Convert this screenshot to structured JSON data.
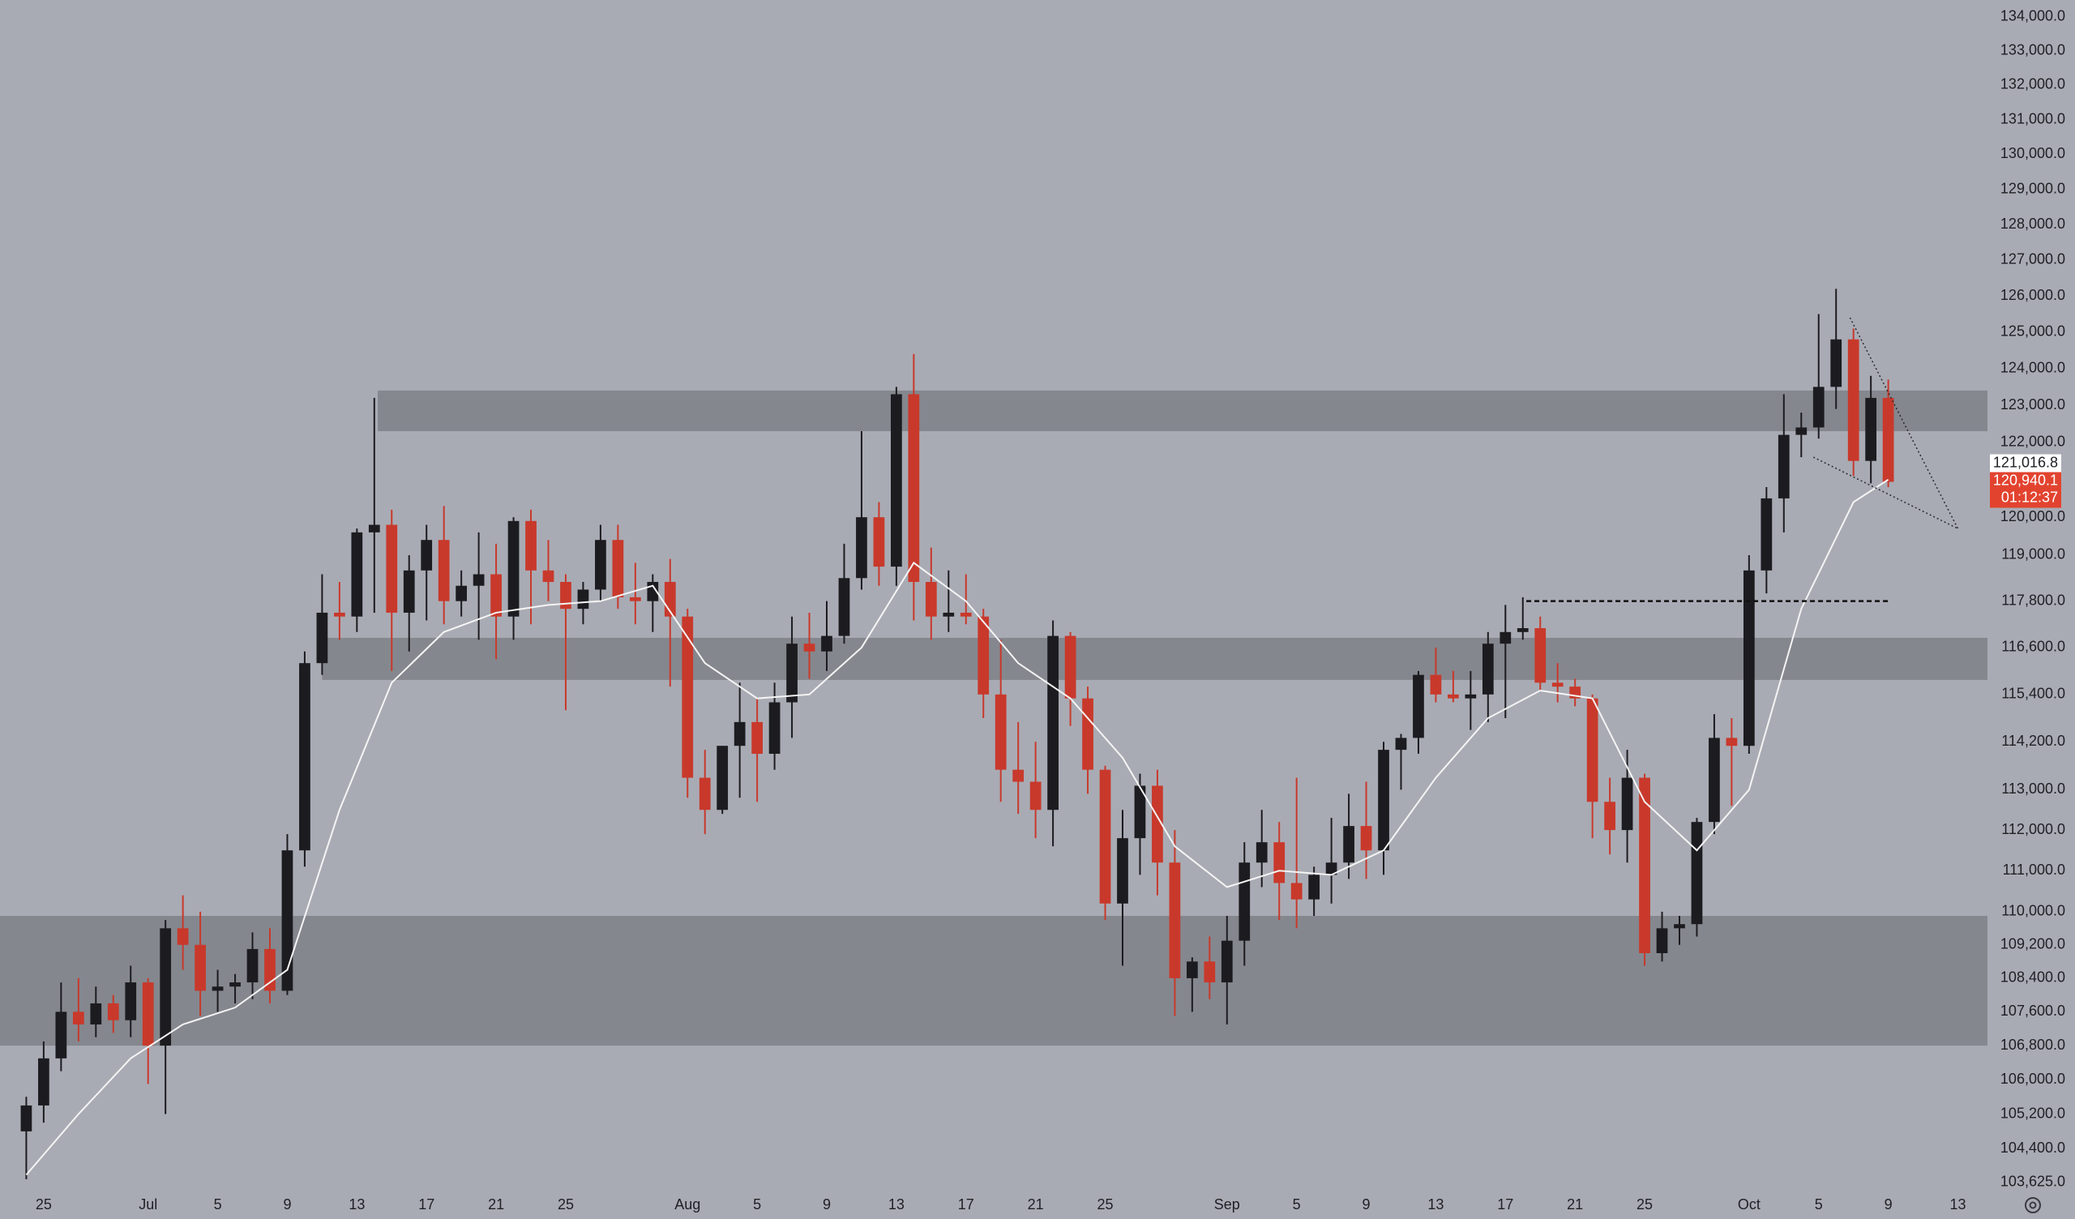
{
  "chart_data": {
    "type": "candlestick",
    "log_scale": true,
    "colors": {
      "up": "#1c1c20",
      "down": "#c8392b",
      "zone": "#85878e",
      "ma": "#f4f4f4"
    },
    "x": [
      2,
      3,
      4,
      5,
      6,
      7,
      8,
      9,
      10,
      11,
      12,
      13,
      14,
      15,
      16,
      17,
      18,
      19,
      20,
      21,
      22,
      23,
      24,
      25,
      26,
      27,
      28,
      29,
      30,
      31,
      32,
      33,
      34,
      35,
      36,
      37,
      38,
      39,
      40,
      41,
      42,
      43,
      44,
      45,
      46,
      47,
      48,
      49,
      50,
      51,
      52,
      53,
      54,
      55,
      56,
      57,
      58,
      59,
      60,
      61,
      62,
      63,
      64,
      65,
      66,
      67,
      68,
      69,
      70,
      71,
      72,
      73,
      74,
      75,
      76,
      77,
      78,
      79,
      80,
      81,
      82,
      83,
      84,
      85,
      86,
      87,
      88,
      89,
      90,
      91,
      92,
      93,
      94,
      95,
      96,
      97,
      98,
      99,
      100,
      101,
      102,
      103,
      104,
      105,
      106,
      107,
      108,
      109
    ],
    "ohlc": [
      [
        104800,
        105600,
        103700,
        105400
      ],
      [
        105400,
        106900,
        105000,
        106500
      ],
      [
        106500,
        108300,
        106200,
        107600
      ],
      [
        107600,
        108400,
        106900,
        107300
      ],
      [
        107300,
        108200,
        107000,
        107800
      ],
      [
        107800,
        108000,
        107100,
        107400
      ],
      [
        107400,
        108700,
        107000,
        108300
      ],
      [
        108300,
        108400,
        105900,
        106800
      ],
      [
        106800,
        109800,
        105200,
        109600
      ],
      [
        109600,
        110400,
        108600,
        109200
      ],
      [
        109200,
        110000,
        107500,
        108100
      ],
      [
        108100,
        108600,
        107600,
        108200
      ],
      [
        108200,
        108500,
        107800,
        108300
      ],
      [
        108300,
        109500,
        107900,
        109100
      ],
      [
        109100,
        109600,
        107800,
        108100
      ],
      [
        108100,
        111900,
        108000,
        111500
      ],
      [
        111500,
        116500,
        111100,
        116200
      ],
      [
        116200,
        118500,
        115900,
        117500
      ],
      [
        117500,
        118300,
        116800,
        117400
      ],
      [
        117400,
        119700,
        117000,
        119600
      ],
      [
        119600,
        123200,
        117500,
        119800
      ],
      [
        119800,
        120200,
        116000,
        117500
      ],
      [
        117500,
        119000,
        116500,
        118600
      ],
      [
        118600,
        119800,
        117300,
        119400
      ],
      [
        119400,
        120300,
        117200,
        117800
      ],
      [
        117800,
        118600,
        117400,
        118200
      ],
      [
        118200,
        119600,
        116800,
        118500
      ],
      [
        118500,
        119300,
        116300,
        117400
      ],
      [
        117400,
        120000,
        116800,
        119900
      ],
      [
        119900,
        120200,
        117200,
        118600
      ],
      [
        118600,
        119400,
        117800,
        118300
      ],
      [
        118300,
        118500,
        115000,
        117600
      ],
      [
        117600,
        118300,
        117200,
        118100
      ],
      [
        118100,
        119800,
        117800,
        119400
      ],
      [
        119400,
        119800,
        117600,
        117900
      ],
      [
        117900,
        118800,
        117200,
        117800
      ],
      [
        117800,
        118500,
        117000,
        118300
      ],
      [
        118300,
        118900,
        115600,
        117400
      ],
      [
        117400,
        117600,
        112800,
        113300
      ],
      [
        113300,
        114000,
        111900,
        112500
      ],
      [
        112500,
        114100,
        112400,
        114100
      ],
      [
        114100,
        115700,
        112800,
        114700
      ],
      [
        114700,
        115300,
        112700,
        113900
      ],
      [
        113900,
        115700,
        113500,
        115200
      ],
      [
        115200,
        117400,
        114300,
        116700
      ],
      [
        116700,
        117500,
        115800,
        116500
      ],
      [
        116500,
        117800,
        116000,
        116900
      ],
      [
        116900,
        119300,
        116700,
        118400
      ],
      [
        118400,
        122300,
        118100,
        120000
      ],
      [
        120000,
        120400,
        118200,
        118700
      ],
      [
        118700,
        123500,
        118200,
        123300
      ],
      [
        123300,
        124400,
        117300,
        118300
      ],
      [
        118300,
        119200,
        116800,
        117400
      ],
      [
        117400,
        118600,
        117000,
        117500
      ],
      [
        117500,
        118500,
        117200,
        117400
      ],
      [
        117400,
        117600,
        114800,
        115400
      ],
      [
        115400,
        116800,
        112700,
        113500
      ],
      [
        113500,
        114700,
        112400,
        113200
      ],
      [
        113200,
        114200,
        111800,
        112500
      ],
      [
        112500,
        117300,
        111600,
        116900
      ],
      [
        116900,
        117000,
        114600,
        115300
      ],
      [
        115300,
        115600,
        112900,
        113500
      ],
      [
        113500,
        113600,
        109800,
        110200
      ],
      [
        110200,
        112500,
        108700,
        111800
      ],
      [
        111800,
        113400,
        110900,
        113100
      ],
      [
        113100,
        113500,
        110400,
        111200
      ],
      [
        111200,
        112000,
        107500,
        108400
      ],
      [
        108400,
        108900,
        107600,
        108800
      ],
      [
        108800,
        109400,
        107900,
        108300
      ],
      [
        108300,
        109900,
        107300,
        109300
      ],
      [
        109300,
        111700,
        108700,
        111200
      ],
      [
        111200,
        112500,
        110600,
        111700
      ],
      [
        111700,
        112200,
        109800,
        110700
      ],
      [
        110700,
        113300,
        109600,
        110300
      ],
      [
        110300,
        111100,
        109900,
        110900
      ],
      [
        110900,
        112300,
        110200,
        111200
      ],
      [
        111200,
        112900,
        110800,
        112100
      ],
      [
        112100,
        113200,
        110800,
        111500
      ],
      [
        111500,
        114200,
        110900,
        114000
      ],
      [
        114000,
        114400,
        113000,
        114300
      ],
      [
        114300,
        116000,
        113900,
        115900
      ],
      [
        115900,
        116600,
        115200,
        115400
      ],
      [
        115400,
        116000,
        115200,
        115300
      ],
      [
        115300,
        116000,
        114500,
        115400
      ],
      [
        115400,
        117000,
        114700,
        116700
      ],
      [
        116700,
        117700,
        114800,
        117000
      ],
      [
        117000,
        117900,
        116800,
        117100
      ],
      [
        117100,
        117400,
        115500,
        115700
      ],
      [
        115700,
        116200,
        115200,
        115600
      ],
      [
        115600,
        115800,
        115100,
        115300
      ],
      [
        115300,
        115400,
        111800,
        112700
      ],
      [
        112700,
        113300,
        111400,
        112000
      ],
      [
        112000,
        114000,
        111200,
        113300
      ],
      [
        113300,
        113400,
        108700,
        109000
      ],
      [
        109000,
        110000,
        108800,
        109600
      ],
      [
        109600,
        109900,
        109200,
        109700
      ],
      [
        109700,
        112300,
        109400,
        112200
      ],
      [
        112200,
        114900,
        111900,
        114300
      ],
      [
        114300,
        114800,
        112600,
        114100
      ],
      [
        114100,
        119000,
        113900,
        118600
      ],
      [
        118600,
        120800,
        118000,
        120500
      ],
      [
        120500,
        123300,
        119600,
        122200
      ],
      [
        122200,
        122800,
        121600,
        122400
      ],
      [
        122400,
        125500,
        122100,
        123500
      ],
      [
        123500,
        126200,
        122900,
        124800
      ],
      [
        124800,
        125100,
        121100,
        121500
      ],
      [
        121500,
        123800,
        120900,
        123200
      ],
      [
        123200,
        123700,
        120800,
        120940.1
      ]
    ],
    "ma": {
      "x": [
        2,
        5,
        8,
        11,
        14,
        17,
        20,
        23,
        26,
        29,
        32,
        35,
        38,
        41,
        44,
        47,
        50,
        53,
        56,
        59,
        62,
        65,
        68,
        71,
        74,
        77,
        80,
        83,
        86,
        89,
        92,
        95,
        98,
        101,
        104,
        107,
        109
      ],
      "values": [
        103800,
        105200,
        106500,
        107300,
        107700,
        108600,
        112500,
        115700,
        117000,
        117500,
        117700,
        117800,
        118200,
        116200,
        115300,
        115400,
        116600,
        118800,
        117800,
        116200,
        115300,
        113800,
        111600,
        110600,
        111000,
        110900,
        111500,
        113300,
        114800,
        115500,
        115300,
        112700,
        111500,
        113000,
        117600,
        120400,
        121000
      ]
    },
    "zones": [
      {
        "low": 122300,
        "high": 123400,
        "x_start": 22.2
      },
      {
        "low": 115770,
        "high": 116850,
        "x_start": 19.0
      },
      {
        "low": 106800,
        "high": 109900,
        "x_start": 0.49
      }
    ],
    "level": {
      "value": 117800,
      "x": [
        88.2,
        109.1
      ]
    },
    "trendlines": [
      {
        "x": [
          106.8,
          113.0
        ],
        "y": [
          125400,
          119700
        ]
      },
      {
        "x": [
          104.7,
          113.0
        ],
        "y": [
          121600,
          119700
        ]
      }
    ],
    "xlim": [
      0.49,
      114.7
    ],
    "ylim": [
      103420,
      134500
    ],
    "xticks": [
      {
        "value": 3,
        "label": "25"
      },
      {
        "value": 9,
        "label": "Jul"
      },
      {
        "value": 13,
        "label": "5"
      },
      {
        "value": 17,
        "label": "9"
      },
      {
        "value": 21,
        "label": "13"
      },
      {
        "value": 25,
        "label": "17"
      },
      {
        "value": 29,
        "label": "21"
      },
      {
        "value": 33,
        "label": "25"
      },
      {
        "value": 40,
        "label": "Aug"
      },
      {
        "value": 44,
        "label": "5"
      },
      {
        "value": 48,
        "label": "9"
      },
      {
        "value": 52,
        "label": "13"
      },
      {
        "value": 56,
        "label": "17"
      },
      {
        "value": 60,
        "label": "21"
      },
      {
        "value": 64,
        "label": "25"
      },
      {
        "value": 71,
        "label": "Sep"
      },
      {
        "value": 75,
        "label": "5"
      },
      {
        "value": 79,
        "label": "9"
      },
      {
        "value": 83,
        "label": "13"
      },
      {
        "value": 87,
        "label": "17"
      },
      {
        "value": 91,
        "label": "21"
      },
      {
        "value": 95,
        "label": "25"
      },
      {
        "value": 101,
        "label": "Oct"
      },
      {
        "value": 105,
        "label": "5"
      },
      {
        "value": 109,
        "label": "9"
      },
      {
        "value": 113,
        "label": "13"
      }
    ],
    "yticks": [
      {
        "value": 134000,
        "label": "134,000.0"
      },
      {
        "value": 133000,
        "label": "133,000.0"
      },
      {
        "value": 132000,
        "label": "132,000.0"
      },
      {
        "value": 131000,
        "label": "131,000.0"
      },
      {
        "value": 130000,
        "label": "130,000.0"
      },
      {
        "value": 129000,
        "label": "129,000.0"
      },
      {
        "value": 128000,
        "label": "128,000.0"
      },
      {
        "value": 127000,
        "label": "127,000.0"
      },
      {
        "value": 126000,
        "label": "126,000.0"
      },
      {
        "value": 125000,
        "label": "125,000.0"
      },
      {
        "value": 124000,
        "label": "124,000.0"
      },
      {
        "value": 123000,
        "label": "123,000.0"
      },
      {
        "value": 122000,
        "label": "122,000.0"
      },
      {
        "value": 120000,
        "label": "120,000.0"
      },
      {
        "value": 119000,
        "label": "119,000.0"
      },
      {
        "value": 117800,
        "label": "117,800.0"
      },
      {
        "value": 116600,
        "label": "116,600.0"
      },
      {
        "value": 115400,
        "label": "115,400.0"
      },
      {
        "value": 114200,
        "label": "114,200.0"
      },
      {
        "value": 113000,
        "label": "113,000.0"
      },
      {
        "value": 112000,
        "label": "112,000.0"
      },
      {
        "value": 111000,
        "label": "111,000.0"
      },
      {
        "value": 110000,
        "label": "110,000.0"
      },
      {
        "value": 109200,
        "label": "109,200.0"
      },
      {
        "value": 108400,
        "label": "108,400.0"
      },
      {
        "value": 107600,
        "label": "107,600.0"
      },
      {
        "value": 106800,
        "label": "106,800.0"
      },
      {
        "value": 106000,
        "label": "106,000.0"
      },
      {
        "value": 105200,
        "label": "105,200.0"
      },
      {
        "value": 104400,
        "label": "104,400.0"
      },
      {
        "value": 103625,
        "label": "103,625.0"
      }
    ],
    "ref_price": {
      "value": 121016.8,
      "label": "121,016.8"
    },
    "last_price": {
      "value": 120940.1,
      "label": "120,940.1"
    },
    "countdown": "01:12:37"
  }
}
